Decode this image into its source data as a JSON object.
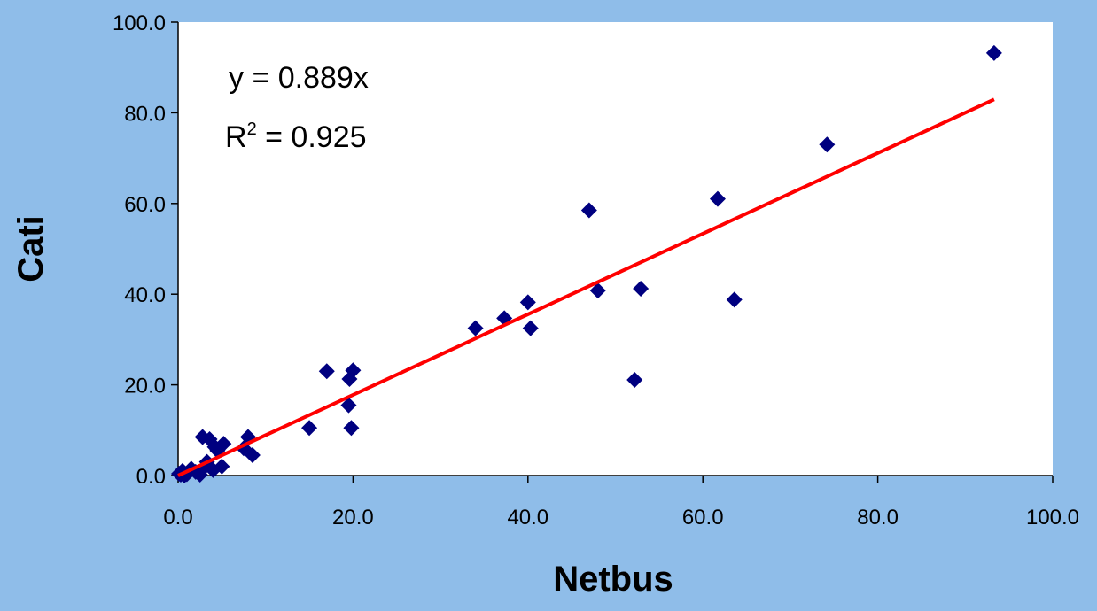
{
  "chart_data": {
    "type": "scatter",
    "xlabel": "Netbus",
    "ylabel": "Cati",
    "xlim": [
      0,
      100
    ],
    "ylim": [
      0,
      100
    ],
    "x_ticks": [
      "0.0",
      "20.0",
      "40.0",
      "60.0",
      "80.0",
      "100.0"
    ],
    "y_ticks": [
      "0.0",
      "20.0",
      "40.0",
      "60.0",
      "80.0",
      "100.0"
    ],
    "grid": false,
    "colors": {
      "background": "#8fbde9",
      "plot_area": "#ffffff",
      "points": "#000080",
      "trendline": "#ff0000"
    },
    "annotation": {
      "equation": "y = 0.889x",
      "r_squared_prefix": "R",
      "r_squared_exponent": "2",
      "r_squared_value": " = 0.925"
    },
    "series": [
      {
        "marker": "diamond",
        "points": [
          [
            0.1,
            0.4
          ],
          [
            0.3,
            0.2
          ],
          [
            0.5,
            1.0
          ],
          [
            0.7,
            0.0
          ],
          [
            1.0,
            0.3
          ],
          [
            1.5,
            1.5
          ],
          [
            2.0,
            0.8
          ],
          [
            2.5,
            0.2
          ],
          [
            2.8,
            8.5
          ],
          [
            3.0,
            1.8
          ],
          [
            3.3,
            3.0
          ],
          [
            3.6,
            8.0
          ],
          [
            4.0,
            1.2
          ],
          [
            4.2,
            6.3
          ],
          [
            4.5,
            5.5
          ],
          [
            5.0,
            2.0
          ],
          [
            5.2,
            7.0
          ],
          [
            7.5,
            6.0
          ],
          [
            8.0,
            8.5
          ],
          [
            8.5,
            4.5
          ],
          [
            15.0,
            10.5
          ],
          [
            17.0,
            23.0
          ],
          [
            19.5,
            15.5
          ],
          [
            19.6,
            21.3
          ],
          [
            19.8,
            10.5
          ],
          [
            20.0,
            23.2
          ],
          [
            34.0,
            32.5
          ],
          [
            37.3,
            34.7
          ],
          [
            40.0,
            38.2
          ],
          [
            40.3,
            32.5
          ],
          [
            47.0,
            58.5
          ],
          [
            48.0,
            40.8
          ],
          [
            52.2,
            21.1
          ],
          [
            52.9,
            41.2
          ],
          [
            61.7,
            61.0
          ],
          [
            63.6,
            38.8
          ],
          [
            74.2,
            73.0
          ],
          [
            93.3,
            93.2
          ]
        ]
      }
    ],
    "trendline": {
      "type": "linear",
      "slope": 0.889,
      "x_range": [
        0,
        93.3
      ]
    }
  }
}
